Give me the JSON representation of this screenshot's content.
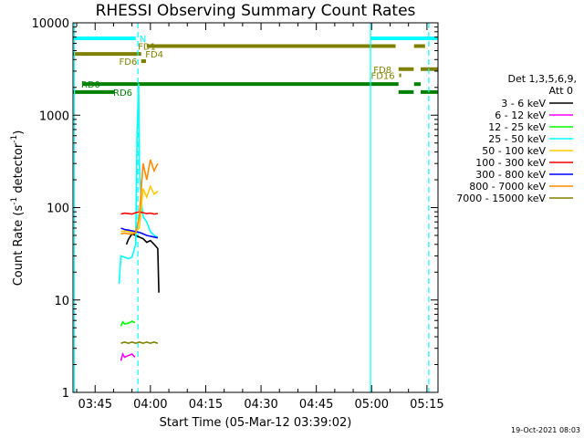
{
  "chart_data": {
    "type": "line",
    "title": "RHESSI Observing Summary Count Rates",
    "xlabel": "Start Time (05-Mar-12 03:39:02)",
    "ylabel_main": "Count Rate (s",
    "ylabel_sup1": "-1",
    "ylabel_mid": " detector",
    "ylabel_sup2": "-1",
    "ylabel_end": ")",
    "yscale": "log",
    "ylim": [
      1,
      10000
    ],
    "xlim_minutes": [
      219.0,
      318.0
    ],
    "x_ticks": [
      {
        "label": "03:45",
        "minute": 225
      },
      {
        "label": "04:00",
        "minute": 240
      },
      {
        "label": "04:15",
        "minute": 255
      },
      {
        "label": "04:30",
        "minute": 270
      },
      {
        "label": "04:45",
        "minute": 285
      },
      {
        "label": "05:00",
        "minute": 300
      },
      {
        "label": "05:15",
        "minute": 315
      }
    ],
    "y_ticks": [
      {
        "label": "1",
        "value": 1
      },
      {
        "label": "10",
        "value": 10
      },
      {
        "label": "100",
        "value": 100
      },
      {
        "label": "1000",
        "value": 1000
      },
      {
        "label": "10000",
        "value": 10000
      }
    ],
    "legend_header": [
      "Det 1,3,5,6,9,",
      "Att 0"
    ],
    "legend_placement": "right",
    "series": [
      {
        "name": "3 - 6 keV",
        "color": "#000000",
        "x": [
          233.5,
          234.0,
          235.0,
          236.0,
          237.0,
          238.0,
          239.0,
          240.0,
          241.0,
          241.5,
          242.0,
          242.3
        ],
        "values": [
          40,
          45,
          52,
          50,
          48,
          46,
          42,
          44,
          40,
          38,
          36,
          12
        ]
      },
      {
        "name": "6 - 12 keV",
        "color": "#ff00ff",
        "x": [
          232.0,
          232.5,
          233.0,
          234.0,
          235.0,
          235.8
        ],
        "values": [
          2.2,
          2.6,
          2.4,
          2.5,
          2.6,
          2.4
        ]
      },
      {
        "name": "12 - 25 keV",
        "color": "#00ff00",
        "x": [
          232.0,
          232.5,
          233.0,
          234.0,
          235.0,
          235.8
        ],
        "values": [
          5.2,
          5.8,
          5.5,
          5.6,
          5.9,
          5.7
        ]
      },
      {
        "name": "25 - 50 keV",
        "color": "#00ffff",
        "x": [
          231.5,
          232.0,
          233.0,
          234.0,
          235.0,
          236.0,
          236.4,
          236.8,
          237.0,
          237.5,
          238.0,
          239.0,
          240.0,
          241.0,
          242.0
        ],
        "values": [
          15,
          30,
          29,
          28,
          29,
          40,
          700,
          2200,
          300,
          120,
          80,
          70,
          55,
          50,
          48
        ]
      },
      {
        "name": "50 - 100 keV",
        "color": "#ffcc00",
        "x": [
          232.0,
          233.0,
          234.0,
          235.0,
          236.0,
          237.0,
          238.0,
          239.0,
          240.0,
          241.0,
          242.0
        ],
        "values": [
          55,
          56,
          55,
          54,
          56,
          60,
          160,
          130,
          170,
          140,
          150
        ]
      },
      {
        "name": "100 - 300 keV",
        "color": "#ff0000",
        "x": [
          232.0,
          233.0,
          234.0,
          235.0,
          236.0,
          237.0,
          238.0,
          239.0,
          240.0,
          241.0,
          242.0
        ],
        "values": [
          85,
          87,
          86,
          85,
          88,
          90,
          88,
          86,
          87,
          85,
          86
        ]
      },
      {
        "name": "300 - 800 keV",
        "color": "#0000ff",
        "x": [
          232.0,
          233.0,
          234.0,
          235.0,
          236.0,
          237.0,
          238.0,
          239.0,
          240.0,
          241.0,
          242.0
        ],
        "values": [
          60,
          58,
          57,
          56,
          55,
          54,
          52,
          50,
          49,
          48,
          47
        ]
      },
      {
        "name": "800 - 7000 keV",
        "color": "#ff8c00",
        "x": [
          232.0,
          233.0,
          234.0,
          235.0,
          236.0,
          237.0,
          238.0,
          239.0,
          240.0,
          241.0,
          242.0
        ],
        "values": [
          52,
          53,
          52,
          52,
          53,
          80,
          300,
          200,
          330,
          250,
          300
        ]
      },
      {
        "name": "7000 - 15000 keV",
        "color": "#808000",
        "x": [
          232.0,
          233.0,
          234.0,
          235.0,
          236.0,
          237.0,
          238.0,
          239.0,
          240.0,
          241.0,
          242.0
        ],
        "values": [
          3.4,
          3.5,
          3.4,
          3.5,
          3.4,
          3.5,
          3.4,
          3.5,
          3.4,
          3.5,
          3.4
        ]
      }
    ],
    "vertical_lines": [
      {
        "minute": 219.4,
        "color": "#00ffff",
        "style": "solid"
      },
      {
        "minute": 236.6,
        "color": "#00ffff",
        "style": "dashed"
      },
      {
        "minute": 299.7,
        "color": "#00ffff",
        "style": "solid"
      },
      {
        "minute": 315.5,
        "color": "#00ffff",
        "style": "dashed"
      }
    ],
    "status_bars": [
      {
        "label": "N",
        "color": "#00ffff",
        "y": 6800,
        "segments": [
          [
            219.0,
            236.0
          ],
          [
            299.7,
            318.0
          ]
        ],
        "label_minute": 237.0
      },
      {
        "label": "FD1",
        "color": "#808000",
        "y": 5600,
        "segments": [
          [
            239.0,
            306.5
          ],
          [
            311.5,
            314.5
          ]
        ],
        "label_minute": 236.6
      },
      {
        "label": "FD4",
        "color": "#808000",
        "y": 4600,
        "segments": [
          [
            219.0,
            237.5
          ]
        ],
        "label_minute": 238.6
      },
      {
        "label": "FD6",
        "color": "#808000",
        "y": 3850,
        "segments": [
          [
            237.5,
            238.8
          ]
        ],
        "label_minute": 231.5
      },
      {
        "label": "FD8",
        "color": "#808000",
        "y": 3150,
        "segments": [
          [
            307.3,
            311.4
          ],
          [
            313.3,
            318.0
          ]
        ],
        "label_minute": 300.5
      },
      {
        "label": "FD16",
        "color": "#808000",
        "y": 2700,
        "segments": [
          [
            307.5,
            308.0
          ]
        ],
        "label_minute": 299.8
      },
      {
        "label": "RD0",
        "color": "#008000",
        "y": 2170,
        "segments": [
          [
            221.6,
            307.3
          ],
          [
            311.5,
            313.3
          ]
        ],
        "label_minute": 221.2
      },
      {
        "label": "RD6",
        "color": "#008000",
        "y": 1780,
        "segments": [
          [
            219.0,
            230.2
          ],
          [
            307.3,
            311.4
          ],
          [
            313.3,
            318.0
          ]
        ],
        "label_minute": 229.9
      }
    ]
  },
  "footer": {
    "date": "19-Oct-2021 08:03"
  }
}
